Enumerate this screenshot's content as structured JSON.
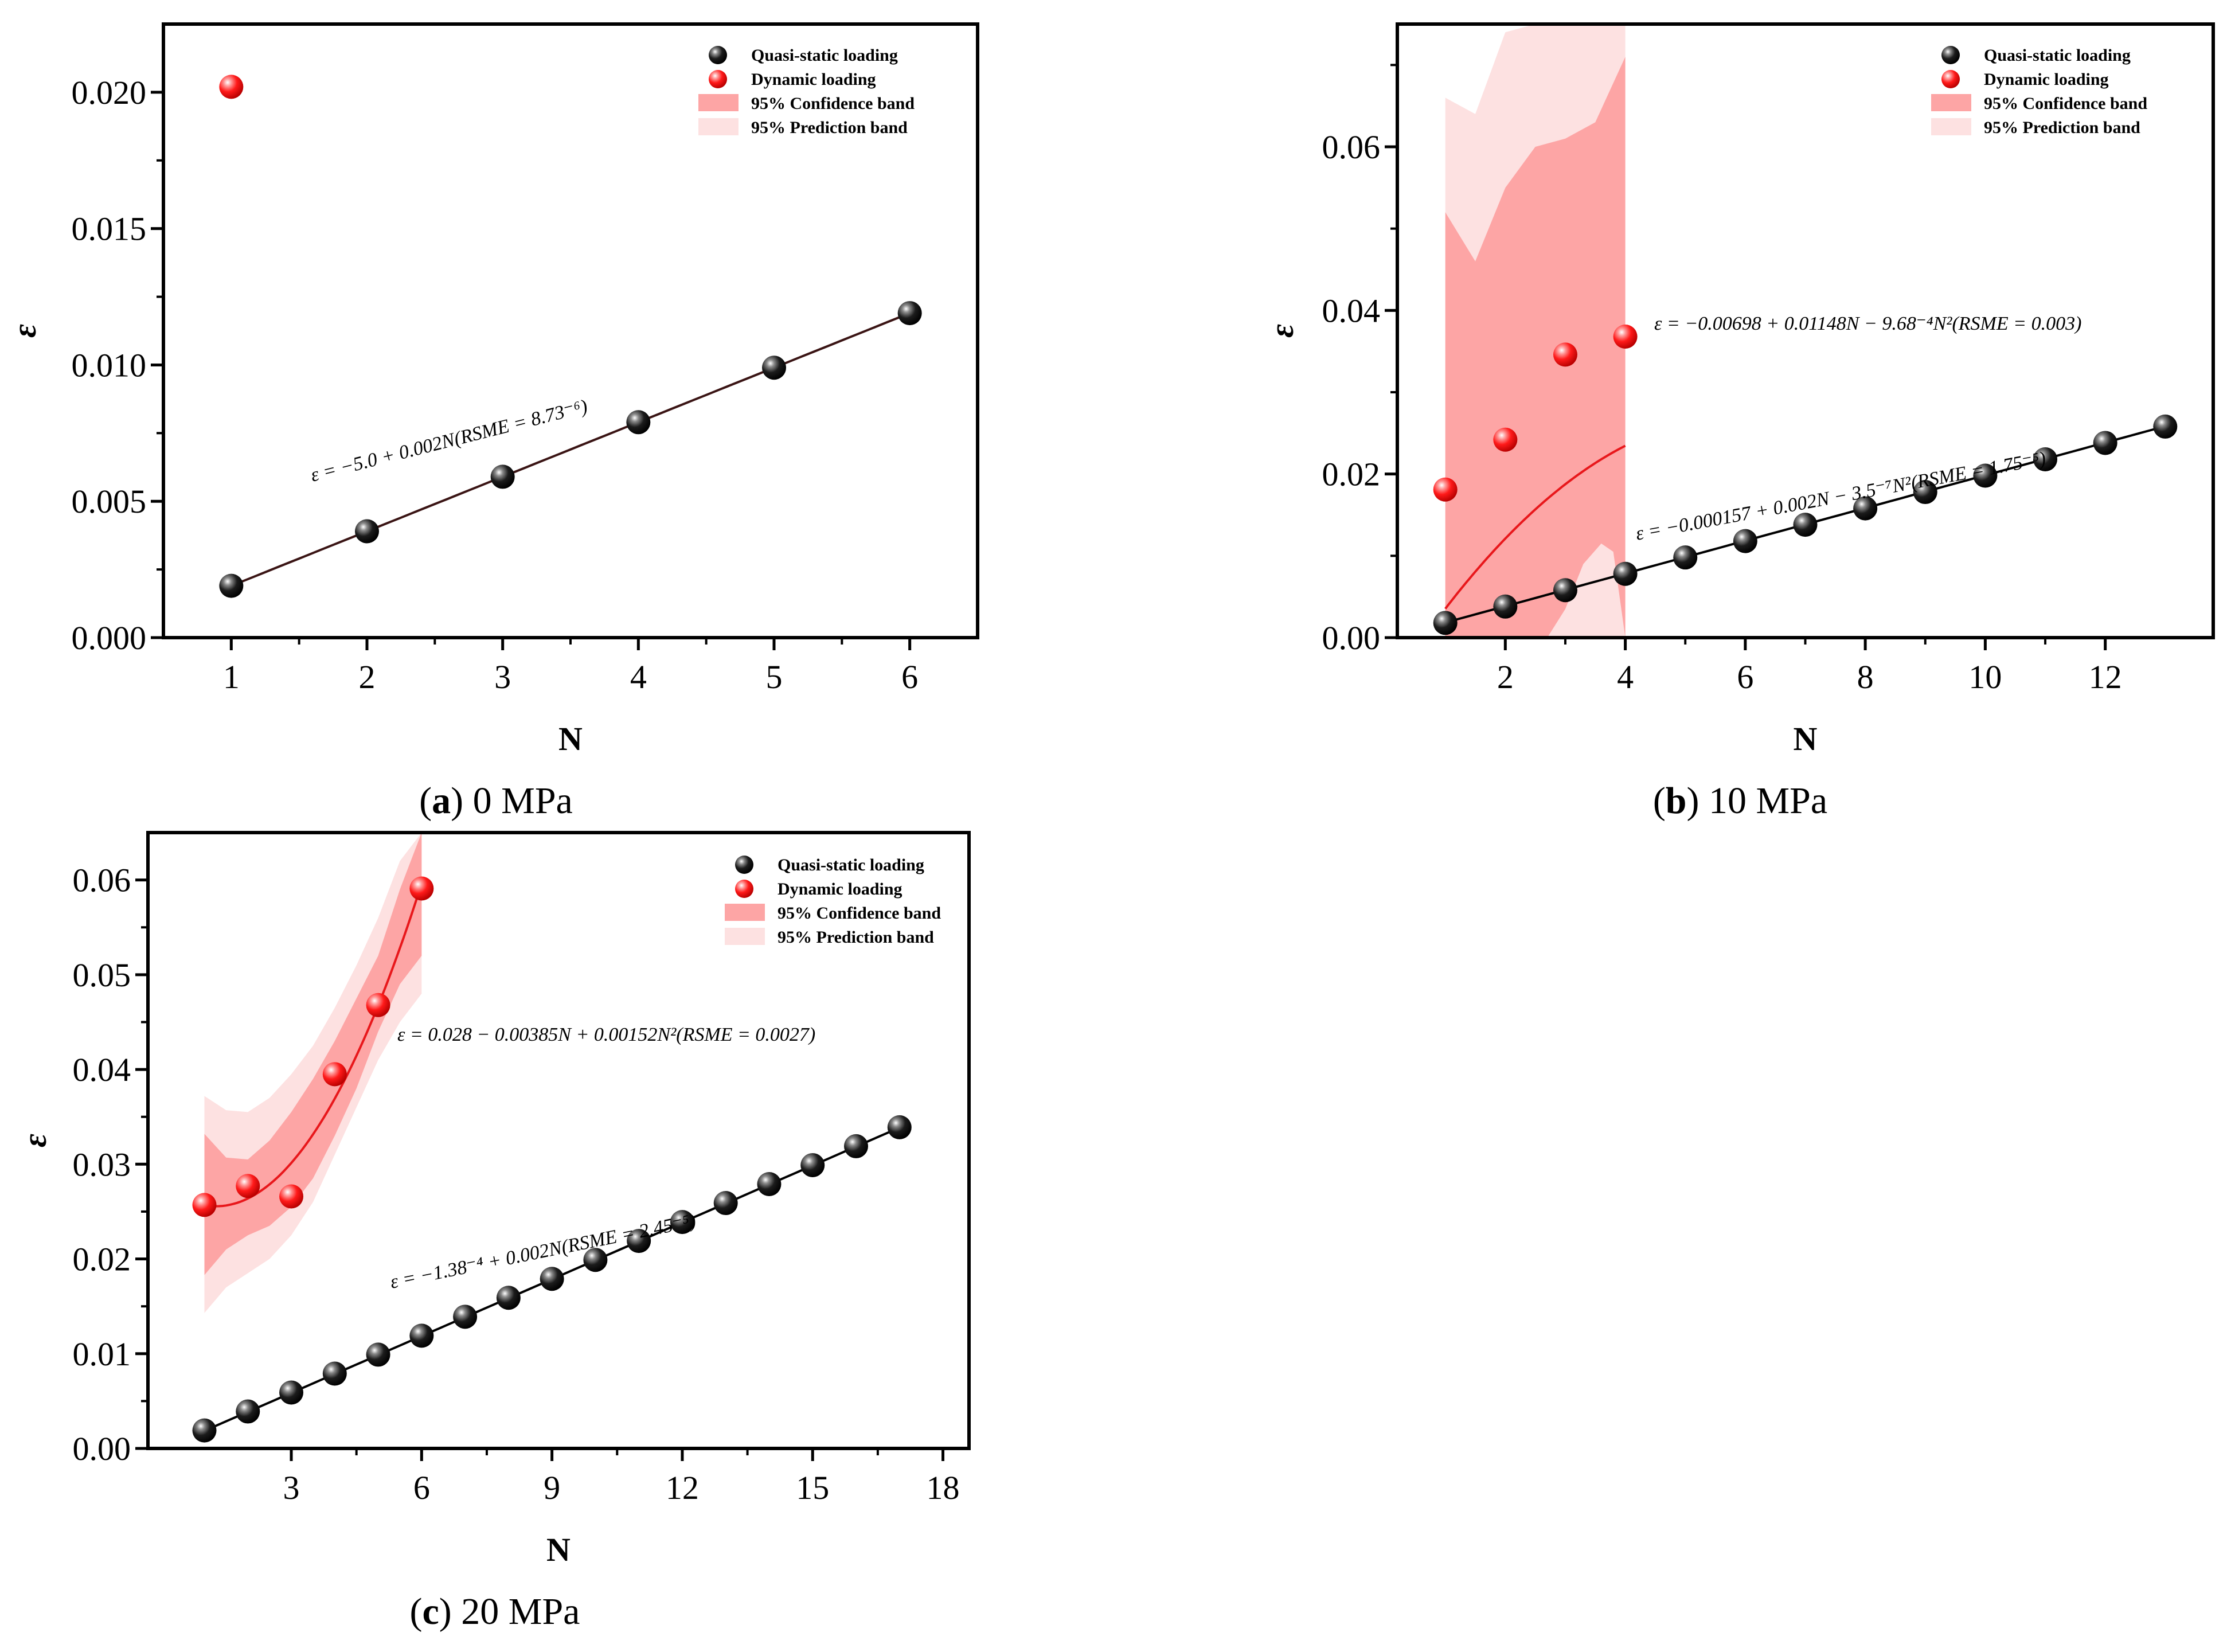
{
  "legend": {
    "quasi": "Quasi-static loading",
    "dynamic": "Dynamic loading",
    "confidence": "95% Confidence band",
    "prediction": "95% Prediction band"
  },
  "colors": {
    "quasi_marker": "#111111",
    "dynamic_marker": "#ff1a1a",
    "dynamic_line": "#e8171b",
    "quasi_line": "#000000",
    "confidence_band": "#fda5a5",
    "prediction_band": "#fde1e1"
  },
  "chart_data": [
    {
      "type": "scatter",
      "panel": "a",
      "caption_letter": "a",
      "caption_rest": " 0 MPa",
      "xlabel": "N",
      "ylabel": "ε",
      "xlim": [
        0.5,
        6.5
      ],
      "ylim": [
        0,
        0.0225
      ],
      "xticks": [
        1,
        2,
        3,
        4,
        5,
        6
      ],
      "xtick_labels": [
        "1",
        "2",
        "3",
        "4",
        "5",
        "6"
      ],
      "yticks": [
        0,
        0.005,
        0.01,
        0.015,
        0.02
      ],
      "ytick_labels": [
        "0.000",
        "0.005",
        "0.010",
        "0.015",
        "0.020"
      ],
      "legend_position": "top-right",
      "series": [
        {
          "name": "Quasi-static loading",
          "x": [
            1,
            2,
            3,
            4,
            5,
            6
          ],
          "y": [
            0.0019,
            0.0039,
            0.0059,
            0.0079,
            0.0099,
            0.0119
          ]
        },
        {
          "name": "Dynamic loading",
          "x": [
            1
          ],
          "y": [
            0.0202
          ]
        }
      ],
      "fits": {
        "quasi": {
          "coef": [
            -0.0001,
            0.002,
            0
          ],
          "x_range": [
            1,
            6
          ]
        }
      },
      "equations": [
        {
          "text": "ε = −5.0 + 0.002N(RSME = 8.73⁻⁶)",
          "series": "Quasi-static loading"
        }
      ]
    },
    {
      "type": "scatter",
      "panel": "b",
      "caption_letter": "b",
      "caption_rest": " 10 MPa",
      "xlabel": "N",
      "ylabel": "ε",
      "xlim": [
        0.2,
        13.8
      ],
      "ylim": [
        0,
        0.075
      ],
      "xticks": [
        2,
        4,
        6,
        8,
        10,
        12
      ],
      "xtick_labels": [
        "2",
        "4",
        "6",
        "8",
        "10",
        "12"
      ],
      "yticks": [
        0,
        0.02,
        0.04,
        0.06
      ],
      "ytick_labels": [
        "0.00",
        "0.02",
        "0.04",
        "0.06"
      ],
      "legend_position": "top-right",
      "series": [
        {
          "name": "Quasi-static loading",
          "x": [
            1,
            2,
            3,
            4,
            5,
            6,
            7,
            8,
            9,
            10,
            11,
            12,
            13
          ],
          "y": [
            0.0018,
            0.0038,
            0.0058,
            0.0078,
            0.0098,
            0.0118,
            0.0138,
            0.0158,
            0.0178,
            0.0198,
            0.0218,
            0.0238,
            0.0258
          ]
        },
        {
          "name": "Dynamic loading",
          "x": [
            1,
            2,
            3,
            4
          ],
          "y": [
            0.0181,
            0.0242,
            0.0346,
            0.0368
          ]
        }
      ],
      "fits": {
        "quasi": {
          "coef": [
            -0.000157,
            0.002,
            0
          ],
          "x_range": [
            1,
            13
          ]
        },
        "dynamic": {
          "coef": [
            -0.00698,
            0.01148,
            -0.000968
          ],
          "x_range": [
            1,
            4
          ]
        }
      },
      "bands": {
        "x": [
          1,
          1.5,
          2,
          2.5,
          3,
          3.5,
          4
        ],
        "confidence_lower": [
          0.0,
          0.0,
          0.0,
          0.0,
          0.0,
          0.0,
          0.0
        ],
        "confidence_upper": [
          0.052,
          0.046,
          0.055,
          0.06,
          0.061,
          0.063,
          0.071
        ],
        "prediction_lower": [
          0.0,
          0.0,
          0.0,
          0.0,
          0.0,
          0.0,
          0.0
        ],
        "prediction_upper": [
          0.066,
          0.064,
          0.074,
          0.075,
          0.075,
          0.075,
          0.075
        ],
        "prediction_gap_lower": [
          0.0,
          0.0,
          0.0,
          0.0,
          0.0,
          0.0,
          0.0
        ],
        "prediction_gap_upper": [
          0.0,
          0.0,
          0.0,
          0.0,
          0.006,
          0.0115,
          0.0
        ]
      },
      "equations": [
        {
          "text": "ε = −0.00698 + 0.01148N − 9.68⁻⁴N²(RSME = 0.003)",
          "series": "Dynamic loading"
        },
        {
          "text": "ε = −0.000157 + 0.002N − 3.5⁻⁷N²(RSME = 1.75⁻⁵)",
          "series": "Quasi-static loading"
        }
      ]
    },
    {
      "type": "scatter",
      "panel": "c",
      "caption_letter": "c",
      "caption_rest": " 20 MPa",
      "xlabel": "N",
      "ylabel": "ε",
      "xlim": [
        -0.3,
        18.6
      ],
      "ylim": [
        0,
        0.065
      ],
      "xticks": [
        3,
        6,
        9,
        12,
        15,
        18
      ],
      "xtick_labels": [
        "3",
        "6",
        "9",
        "12",
        "15",
        "18"
      ],
      "yticks": [
        0,
        0.01,
        0.02,
        0.03,
        0.04,
        0.05,
        0.06
      ],
      "ytick_labels": [
        "0.00",
        "0.01",
        "0.02",
        "0.03",
        "0.04",
        "0.05",
        "0.06"
      ],
      "legend_position": "top-right",
      "series": [
        {
          "name": "Quasi-static loading",
          "x": [
            1,
            2,
            3,
            4,
            5,
            6,
            7,
            8,
            9,
            10,
            11,
            12,
            13,
            14,
            15,
            16,
            17
          ],
          "y": [
            0.0019,
            0.0039,
            0.0059,
            0.0079,
            0.0099,
            0.0119,
            0.0139,
            0.0159,
            0.0179,
            0.0199,
            0.0219,
            0.0239,
            0.0259,
            0.0279,
            0.0299,
            0.0319,
            0.0339
          ]
        },
        {
          "name": "Dynamic loading",
          "x": [
            1,
            2,
            3,
            4,
            5,
            6
          ],
          "y": [
            0.0257,
            0.0277,
            0.0266,
            0.0395,
            0.0468,
            0.0591
          ]
        }
      ],
      "fits": {
        "quasi": {
          "coef": [
            -0.000138,
            0.002,
            0
          ],
          "x_range": [
            1,
            17
          ]
        },
        "dynamic": {
          "coef": [
            0.028,
            -0.00385,
            0.00152
          ],
          "x_range": [
            1,
            6
          ]
        }
      },
      "bands": {
        "x": [
          1,
          1.5,
          2,
          2.5,
          3,
          3.5,
          4,
          4.5,
          5,
          5.5,
          6
        ],
        "confidence_lower": [
          0.0183,
          0.021,
          0.0225,
          0.0235,
          0.0255,
          0.0285,
          0.033,
          0.038,
          0.044,
          0.049,
          0.052
        ],
        "confidence_upper": [
          0.0332,
          0.0307,
          0.0305,
          0.0325,
          0.0355,
          0.039,
          0.043,
          0.0475,
          0.052,
          0.059,
          0.065
        ],
        "prediction_lower": [
          0.0143,
          0.017,
          0.0185,
          0.02,
          0.0225,
          0.026,
          0.031,
          0.036,
          0.041,
          0.045,
          0.048
        ],
        "prediction_upper": [
          0.0372,
          0.0357,
          0.0355,
          0.037,
          0.0395,
          0.0425,
          0.0465,
          0.051,
          0.056,
          0.062,
          0.065
        ]
      },
      "equations": [
        {
          "text": "ε = 0.028 − 0.00385N + 0.00152N²(RSME = 0.0027)",
          "series": "Dynamic loading"
        },
        {
          "text": "ε = −1.38⁻⁴ + 0.002N(RSME = 2.45⁻⁵)",
          "series": "Quasi-static loading"
        }
      ]
    }
  ]
}
